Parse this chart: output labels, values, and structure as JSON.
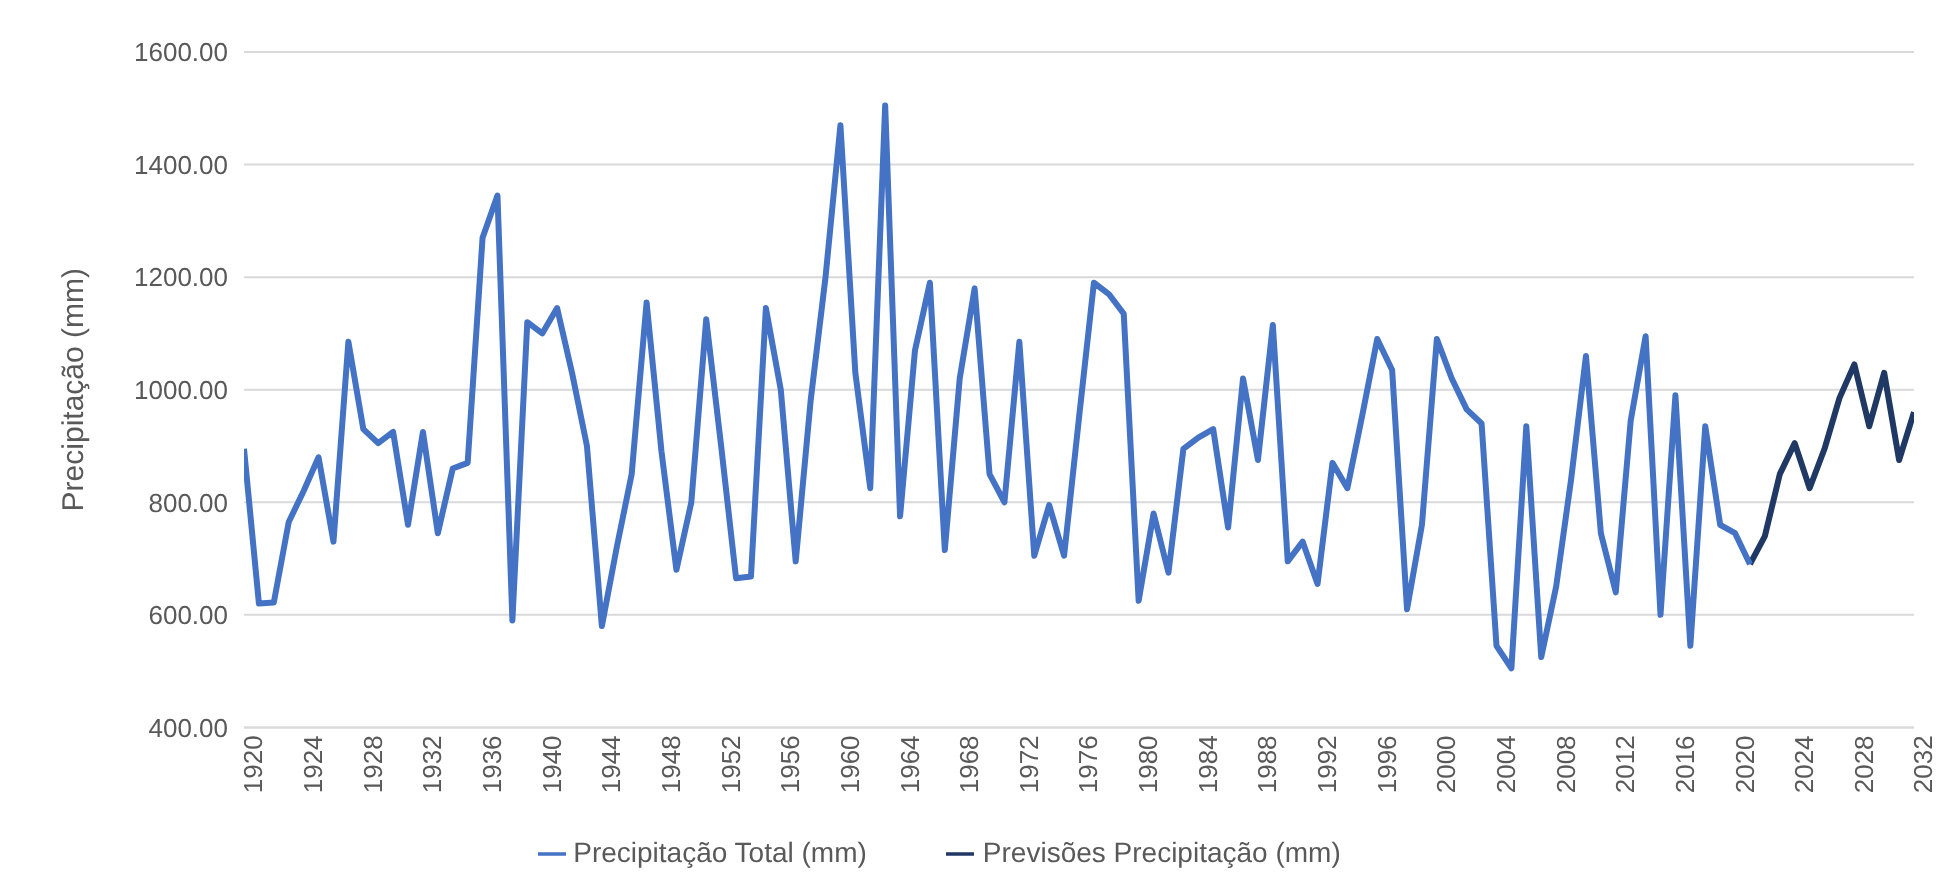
{
  "chart_data": {
    "type": "line",
    "ylabel": "Precipitação (mm)",
    "x": [
      1920,
      1921,
      1922,
      1923,
      1924,
      1925,
      1926,
      1927,
      1928,
      1929,
      1930,
      1931,
      1932,
      1933,
      1934,
      1935,
      1936,
      1937,
      1938,
      1939,
      1940,
      1941,
      1942,
      1943,
      1944,
      1945,
      1946,
      1947,
      1948,
      1949,
      1950,
      1951,
      1952,
      1953,
      1954,
      1955,
      1956,
      1957,
      1958,
      1959,
      1960,
      1961,
      1962,
      1963,
      1964,
      1965,
      1966,
      1967,
      1968,
      1969,
      1970,
      1971,
      1972,
      1973,
      1974,
      1975,
      1976,
      1977,
      1978,
      1979,
      1980,
      1981,
      1982,
      1983,
      1984,
      1985,
      1986,
      1987,
      1988,
      1989,
      1990,
      1991,
      1992,
      1993,
      1994,
      1995,
      1996,
      1997,
      1998,
      1999,
      2000,
      2001,
      2002,
      2003,
      2004,
      2005,
      2006,
      2007,
      2008,
      2009,
      2010,
      2011,
      2012,
      2013,
      2014,
      2015,
      2016,
      2017,
      2018,
      2019,
      2020,
      2021,
      2022,
      2023,
      2024,
      2025,
      2026,
      2027,
      2028,
      2029,
      2030,
      2031,
      2032
    ],
    "series": [
      {
        "name": "Previsões Precipitação (mm)",
        "color": "#1f3864",
        "values": [
          null,
          null,
          null,
          null,
          null,
          null,
          null,
          null,
          null,
          null,
          null,
          null,
          null,
          null,
          null,
          null,
          null,
          null,
          null,
          null,
          null,
          null,
          null,
          null,
          null,
          null,
          null,
          null,
          null,
          null,
          null,
          null,
          null,
          null,
          null,
          null,
          null,
          null,
          null,
          null,
          null,
          null,
          null,
          null,
          null,
          null,
          null,
          null,
          null,
          null,
          null,
          null,
          null,
          null,
          null,
          null,
          null,
          null,
          null,
          null,
          null,
          null,
          null,
          null,
          null,
          null,
          null,
          null,
          null,
          null,
          null,
          null,
          null,
          null,
          null,
          null,
          null,
          null,
          null,
          null,
          null,
          null,
          null,
          null,
          null,
          null,
          null,
          null,
          null,
          null,
          null,
          null,
          null,
          null,
          null,
          null,
          null,
          null,
          null,
          null,
          null,
          690,
          740,
          850,
          905,
          825,
          895,
          985,
          1045,
          935,
          1030,
          875,
          960
        ]
      },
      {
        "name": "Precipitação Total (mm)",
        "color": "#4472c4",
        "values": [
          895,
          620,
          622,
          765,
          820,
          880,
          730,
          1085,
          930,
          905,
          925,
          760,
          925,
          745,
          860,
          870,
          1270,
          1345,
          590,
          1120,
          1100,
          1145,
          1030,
          900,
          580,
          720,
          850,
          1155,
          890,
          680,
          800,
          1125,
          900,
          665,
          668,
          1145,
          1000,
          695,
          980,
          1200,
          1470,
          1030,
          825,
          1505,
          775,
          1070,
          1190,
          715,
          1020,
          1180,
          850,
          800,
          1085,
          705,
          795,
          705,
          950,
          1190,
          1170,
          1135,
          625,
          780,
          675,
          895,
          915,
          930,
          755,
          1020,
          875,
          1115,
          695,
          730,
          655,
          870,
          825,
          955,
          1090,
          1035,
          610,
          760,
          1090,
          1020,
          965,
          940,
          545,
          505,
          935,
          525,
          650,
          840,
          1060,
          745,
          640,
          945,
          1095,
          600,
          990,
          545,
          935,
          760,
          745,
          690,
          null,
          null,
          null,
          null,
          null,
          null,
          null,
          null,
          null,
          null,
          null
        ]
      }
    ],
    "xlim": [
      1920,
      2032
    ],
    "xticks": [
      1920,
      1924,
      1928,
      1932,
      1936,
      1940,
      1944,
      1948,
      1952,
      1956,
      1960,
      1964,
      1968,
      1972,
      1976,
      1980,
      1984,
      1988,
      1992,
      1996,
      2000,
      2004,
      2008,
      2012,
      2016,
      2020,
      2024,
      2028,
      2032
    ],
    "ylim": [
      400,
      1600
    ],
    "yticks": [
      {
        "value": 400,
        "label": "400.00"
      },
      {
        "value": 600,
        "label": "600.00"
      },
      {
        "value": 800,
        "label": "800.00"
      },
      {
        "value": 1000,
        "label": "1000.00"
      },
      {
        "value": 1200,
        "label": "1200.00"
      },
      {
        "value": 1400,
        "label": "1400.00"
      },
      {
        "value": 1600,
        "label": "1600.00"
      }
    ],
    "grid": "y",
    "legend": "bottom",
    "line_style": "solid"
  }
}
